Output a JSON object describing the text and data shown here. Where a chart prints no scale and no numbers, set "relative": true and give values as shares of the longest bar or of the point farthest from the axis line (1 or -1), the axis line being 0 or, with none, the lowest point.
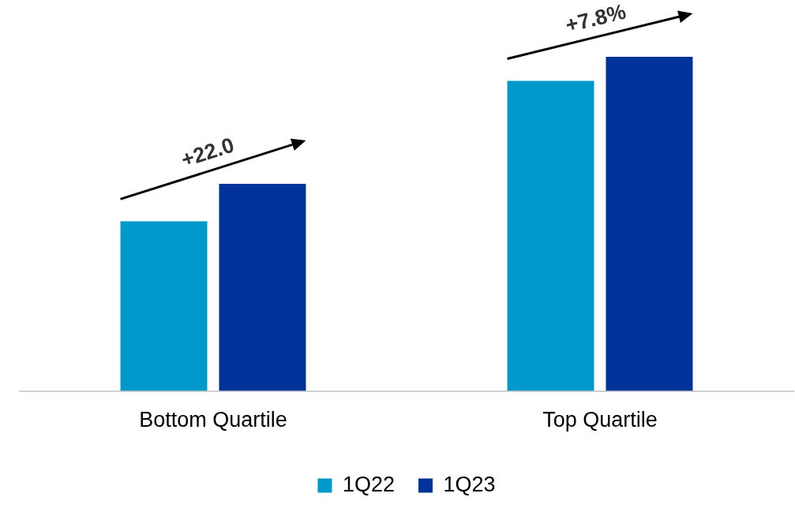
{
  "chart_data": {
    "type": "bar",
    "relative": true,
    "categories": [
      "Bottom Quartile",
      "Top Quartile"
    ],
    "series": [
      {
        "name": "1Q22",
        "color": "#0099cc",
        "values": [
          0.508,
          0.928
        ]
      },
      {
        "name": "1Q23",
        "color": "#003399",
        "values": [
          0.62,
          1
        ]
      }
    ],
    "annotations": [
      "+22.0",
      "+7.8%"
    ],
    "legend": "bottom",
    "grid": false
  }
}
